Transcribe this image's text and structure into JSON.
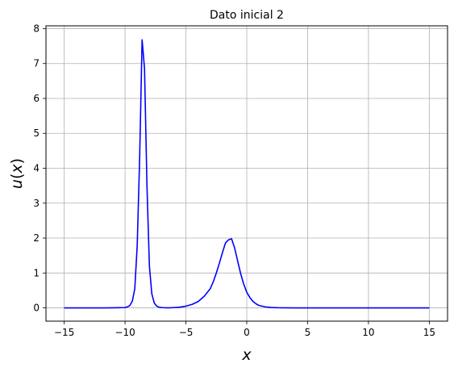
{
  "chart_data": {
    "type": "line",
    "title": "Dato inicial 2",
    "xlabel": "x",
    "ylabel_prefix": "u",
    "ylabel_var": "x",
    "xlim": [
      -16.5,
      16.5
    ],
    "ylim": [
      -0.38,
      8.08
    ],
    "xticks": [
      -15,
      -10,
      -5,
      0,
      5,
      10,
      15
    ],
    "xtick_labels": [
      "−15",
      "−10",
      "−5",
      "0",
      "5",
      "10",
      "15"
    ],
    "yticks": [
      0,
      1,
      2,
      3,
      4,
      5,
      6,
      7,
      8
    ],
    "ytick_labels": [
      "0",
      "1",
      "2",
      "3",
      "4",
      "5",
      "6",
      "7",
      "8"
    ],
    "grid": true,
    "line_color": "#0000ff",
    "series": [
      {
        "x": [
          -15,
          -12,
          -11,
          -10.5,
          -10,
          -9.8,
          -9.6,
          -9.4,
          -9.2,
          -9.0,
          -8.8,
          -8.6,
          -8.4,
          -8.2,
          -8.0,
          -7.8,
          -7.6,
          -7.4,
          -7.2,
          -7.0,
          -6.8,
          -6.6,
          -6.4,
          -6.2,
          -6.0,
          -5.5,
          -5.0,
          -4.5,
          -4.0,
          -3.5,
          -3.0,
          -2.75,
          -2.5,
          -2.25,
          -2.0,
          -1.75,
          -1.5,
          -1.25,
          -1.0,
          -0.75,
          -0.5,
          -0.25,
          0,
          0.25,
          0.5,
          0.75,
          1.0,
          1.5,
          2.0,
          2.5,
          3.0,
          4.0,
          5.0,
          7.0,
          10.0,
          15.0
        ],
        "y": [
          0,
          0,
          0.002,
          0.006,
          0.01,
          0.03,
          0.07,
          0.2,
          0.55,
          1.8,
          4.3,
          7.68,
          6.85,
          3.5,
          1.2,
          0.4,
          0.14,
          0.05,
          0.02,
          0.01,
          0.005,
          0.003,
          0.004,
          0.006,
          0.01,
          0.02,
          0.05,
          0.1,
          0.18,
          0.33,
          0.55,
          0.75,
          1.0,
          1.28,
          1.58,
          1.86,
          1.95,
          1.98,
          1.72,
          1.35,
          0.98,
          0.68,
          0.45,
          0.3,
          0.19,
          0.12,
          0.07,
          0.03,
          0.012,
          0.005,
          0.002,
          0.001,
          0,
          0,
          0,
          0
        ]
      }
    ]
  }
}
